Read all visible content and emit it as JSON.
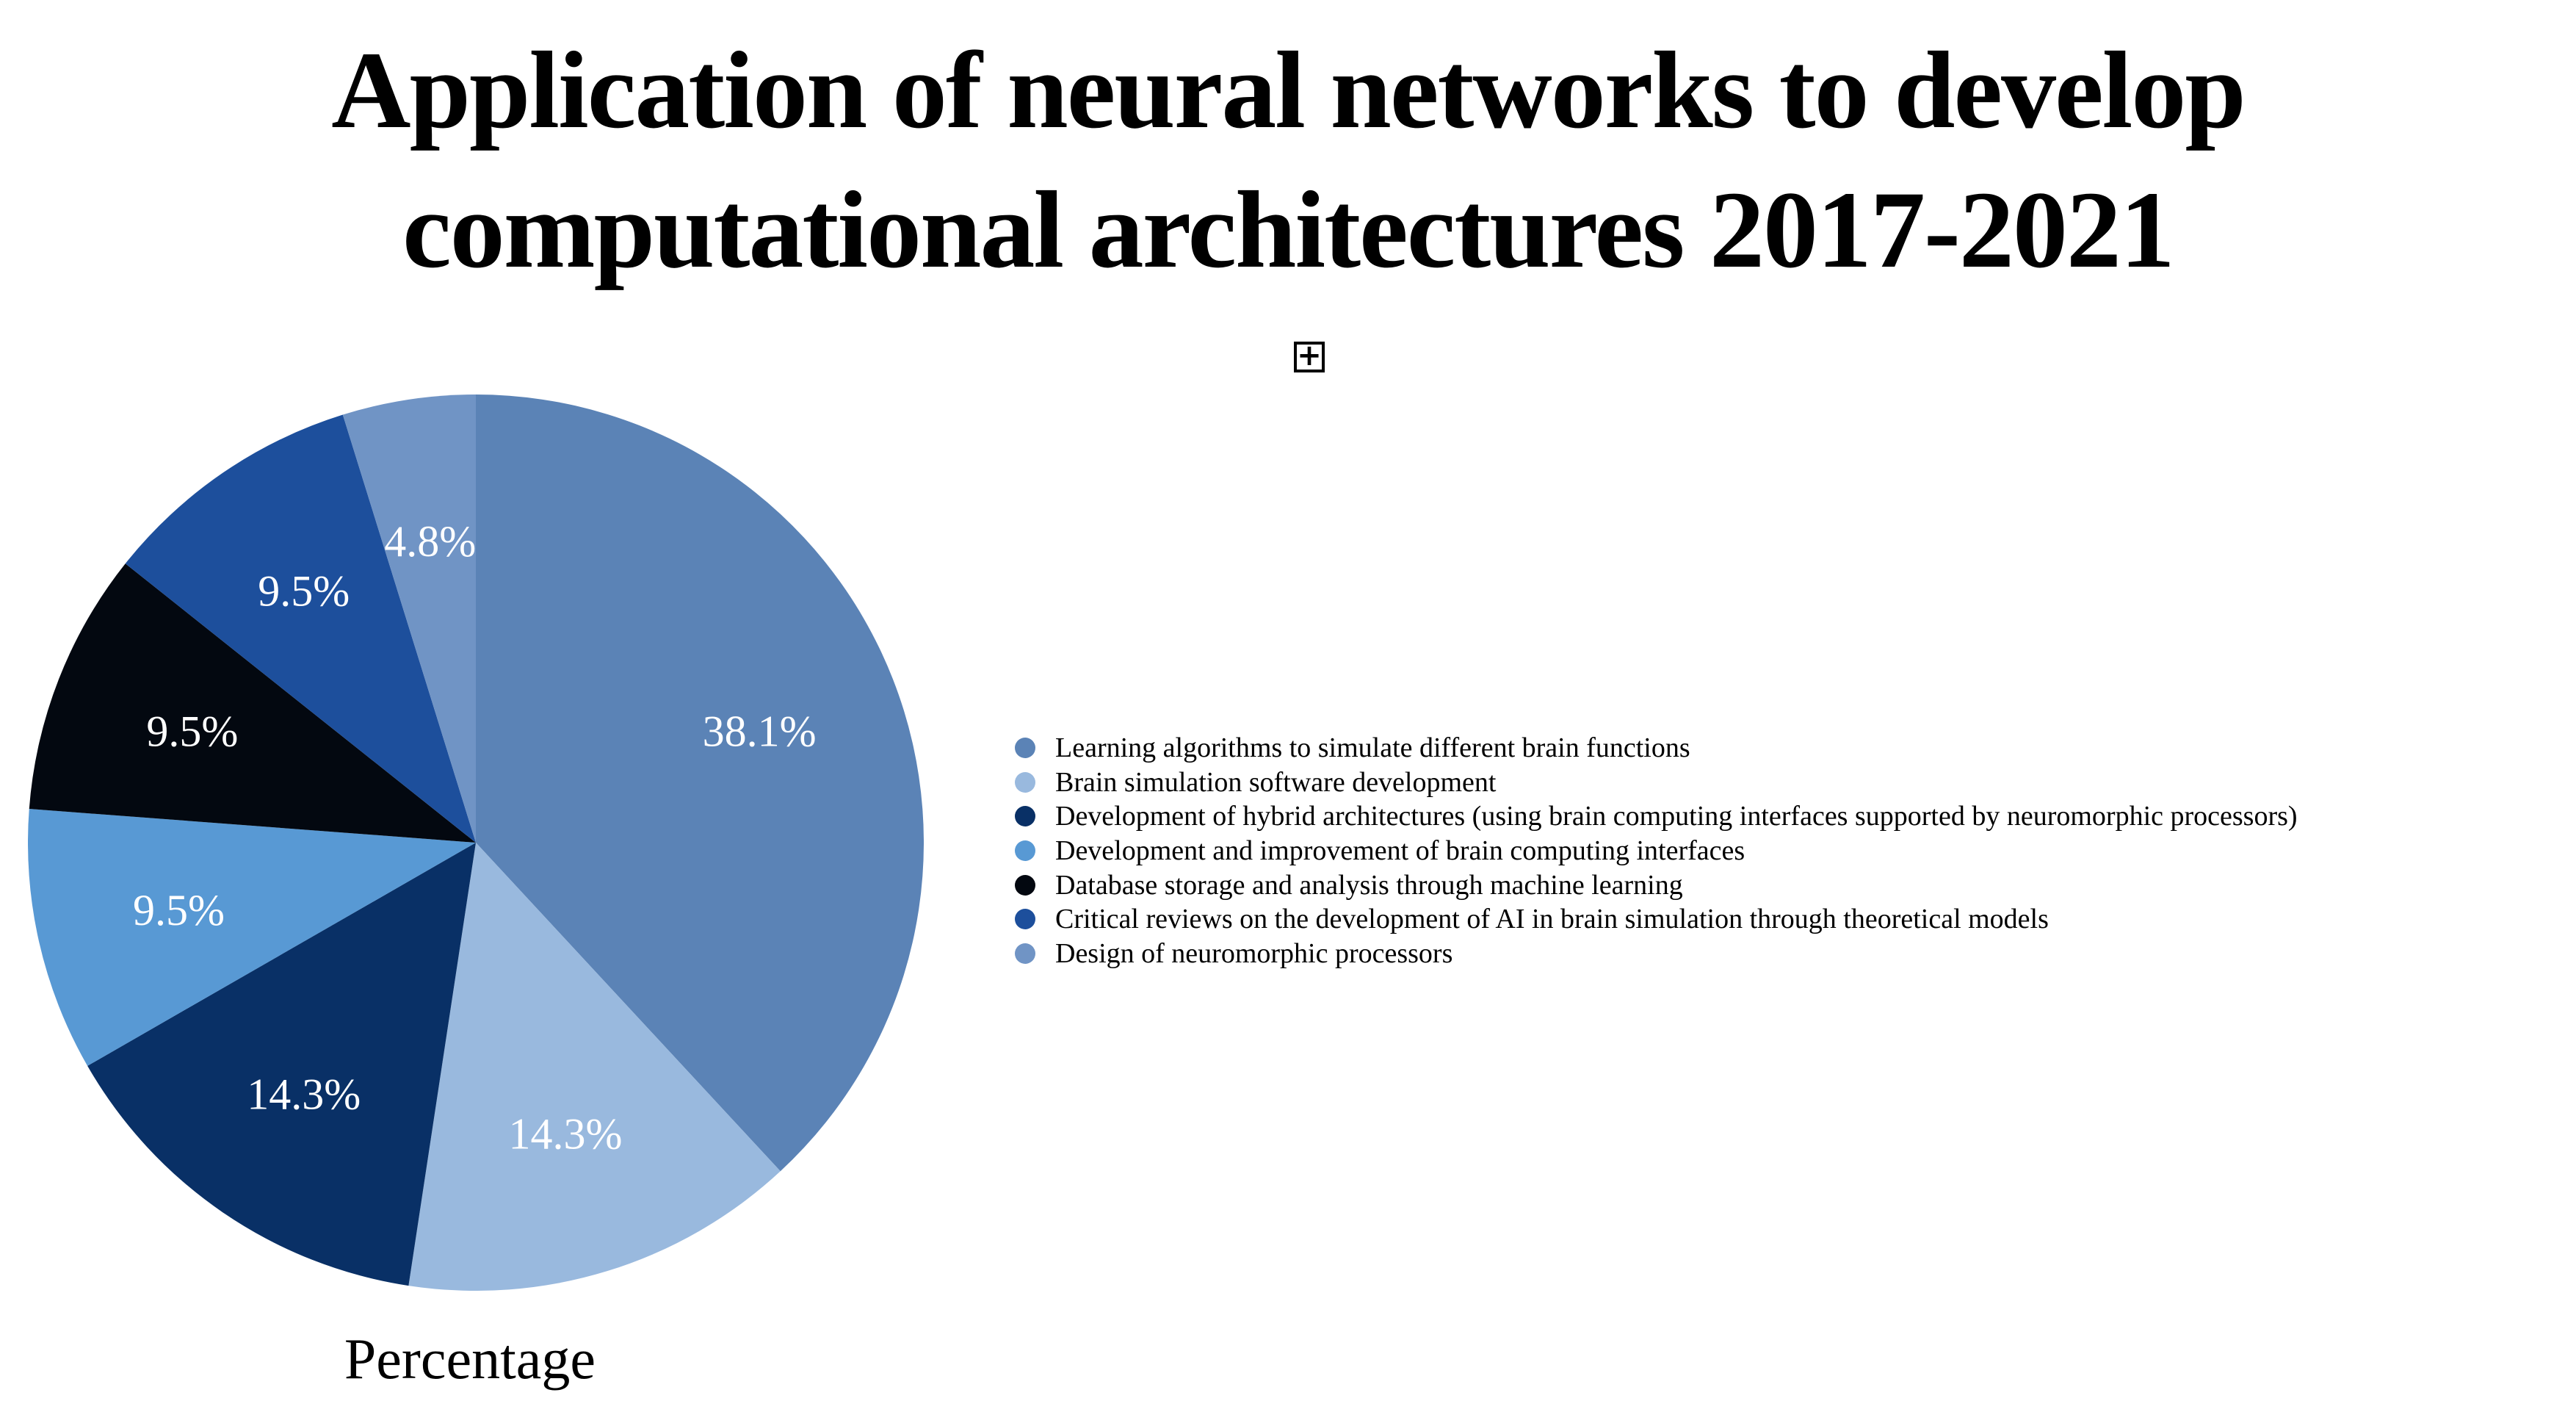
{
  "title": {
    "lines": [
      "Application of neural networks to develop",
      "computational architectures 2017-2021"
    ],
    "full": "Application of neural networks to develop computational architectures 2017-2021"
  },
  "expand_button": {
    "symbol": "+"
  },
  "chart_data": {
    "type": "pie",
    "title": "Application of neural networks to develop computational architectures 2017-2021",
    "unit_label": "Percentage",
    "start_angle": "12 o'clock",
    "direction": "clockwise",
    "legend_position": "right",
    "slices": [
      {
        "label": "Learning algorithms to simulate different brain functions",
        "value": 38.1,
        "display": "38.1%",
        "color": "#5b83b6",
        "label_color": "#ffffff"
      },
      {
        "label": "Brain simulation software development",
        "value": 14.3,
        "display": "14.3%",
        "color": "#99b9de",
        "label_color": "#ffffff"
      },
      {
        "label": "Development of hybrid architectures (using brain computing interfaces supported by neuromorphic processors)",
        "value": 14.3,
        "display": "14.3%",
        "color": "#093066",
        "label_color": "#ffffff"
      },
      {
        "label": "Development and improvement of brain computing interfaces",
        "value": 9.5,
        "display": "9.5%",
        "color": "#5899d4",
        "label_color": "#ffffff"
      },
      {
        "label": "Database storage and analysis through machine learning",
        "value": 9.5,
        "display": "9.5%",
        "color": "#030810",
        "label_color": "#ffffff"
      },
      {
        "label": "Critical reviews on the development of AI in brain simulation through theoretical models",
        "value": 9.5,
        "display": "9.5%",
        "color": "#1d4f9c",
        "label_color": "#ffffff"
      },
      {
        "label": "Design of neuromorphic processors",
        "value": 4.8,
        "display": "4.8%",
        "color": "#7094c5",
        "label_color": "#ffffff"
      }
    ]
  }
}
